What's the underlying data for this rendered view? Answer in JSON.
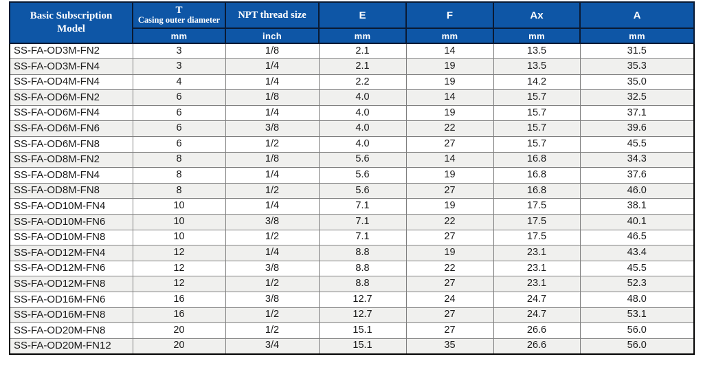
{
  "table": {
    "columns": [
      {
        "label": "Basic Subscription Model"
      },
      {
        "label": "T",
        "sublabel": "Casing outer diameter",
        "unit": "mm"
      },
      {
        "label": "NPT thread size",
        "unit": "inch"
      },
      {
        "label": "E",
        "unit": "mm"
      },
      {
        "label": "F",
        "unit": "mm"
      },
      {
        "label": "Ax",
        "unit": "mm"
      },
      {
        "label": "A",
        "unit": "mm"
      }
    ],
    "rows": [
      [
        "SS-FA-OD3M-FN2",
        "3",
        "1/8",
        "2.1",
        "14",
        "13.5",
        "31.5"
      ],
      [
        "SS-FA-OD3M-FN4",
        "3",
        "1/4",
        "2.1",
        "19",
        "13.5",
        "35.3"
      ],
      [
        "SS-FA-OD4M-FN4",
        "4",
        "1/4",
        "2.2",
        "19",
        "14.2",
        "35.0"
      ],
      [
        "SS-FA-OD6M-FN2",
        "6",
        "1/8",
        "4.0",
        "14",
        "15.7",
        "32.5"
      ],
      [
        "SS-FA-OD6M-FN4",
        "6",
        "1/4",
        "4.0",
        "19",
        "15.7",
        "37.1"
      ],
      [
        "SS-FA-OD6M-FN6",
        "6",
        "3/8",
        "4.0",
        "22",
        "15.7",
        "39.6"
      ],
      [
        "SS-FA-OD6M-FN8",
        "6",
        "1/2",
        "4.0",
        "27",
        "15.7",
        "45.5"
      ],
      [
        "SS-FA-OD8M-FN2",
        "8",
        "1/8",
        "5.6",
        "14",
        "16.8",
        "34.3"
      ],
      [
        "SS-FA-OD8M-FN4",
        "8",
        "1/4",
        "5.6",
        "19",
        "16.8",
        "37.6"
      ],
      [
        "SS-FA-OD8M-FN8",
        "8",
        "1/2",
        "5.6",
        "27",
        "16.8",
        "46.0"
      ],
      [
        "SS-FA-OD10M-FN4",
        "10",
        "1/4",
        "7.1",
        "19",
        "17.5",
        "38.1"
      ],
      [
        "SS-FA-OD10M-FN6",
        "10",
        "3/8",
        "7.1",
        "22",
        "17.5",
        "40.1"
      ],
      [
        "SS-FA-OD10M-FN8",
        "10",
        "1/2",
        "7.1",
        "27",
        "17.5",
        "46.5"
      ],
      [
        "SS-FA-OD12M-FN4",
        "12",
        "1/4",
        "8.8",
        "19",
        "23.1",
        "43.4"
      ],
      [
        "SS-FA-OD12M-FN6",
        "12",
        "3/8",
        "8.8",
        "22",
        "23.1",
        "45.5"
      ],
      [
        "SS-FA-OD12M-FN8",
        "12",
        "1/2",
        "8.8",
        "27",
        "23.1",
        "52.3"
      ],
      [
        "SS-FA-OD16M-FN6",
        "16",
        "3/8",
        "12.7",
        "24",
        "24.7",
        "48.0"
      ],
      [
        "SS-FA-OD16M-FN8",
        "16",
        "1/2",
        "12.7",
        "27",
        "24.7",
        "53.1"
      ],
      [
        "SS-FA-OD20M-FN8",
        "20",
        "1/2",
        "15.1",
        "27",
        "26.6",
        "56.0"
      ],
      [
        "SS-FA-OD20M-FN12",
        "20",
        "3/4",
        "15.1",
        "35",
        "26.6",
        "56.0"
      ]
    ]
  },
  "colors": {
    "header_bg": "#0e56a6",
    "header_text": "#ffffff",
    "header_grid": "#0a1a33",
    "outer_border": "#000000",
    "grid": "#7f7f7f",
    "row_alt": "#f0f0ee",
    "data_text": "#1a1a1a"
  }
}
